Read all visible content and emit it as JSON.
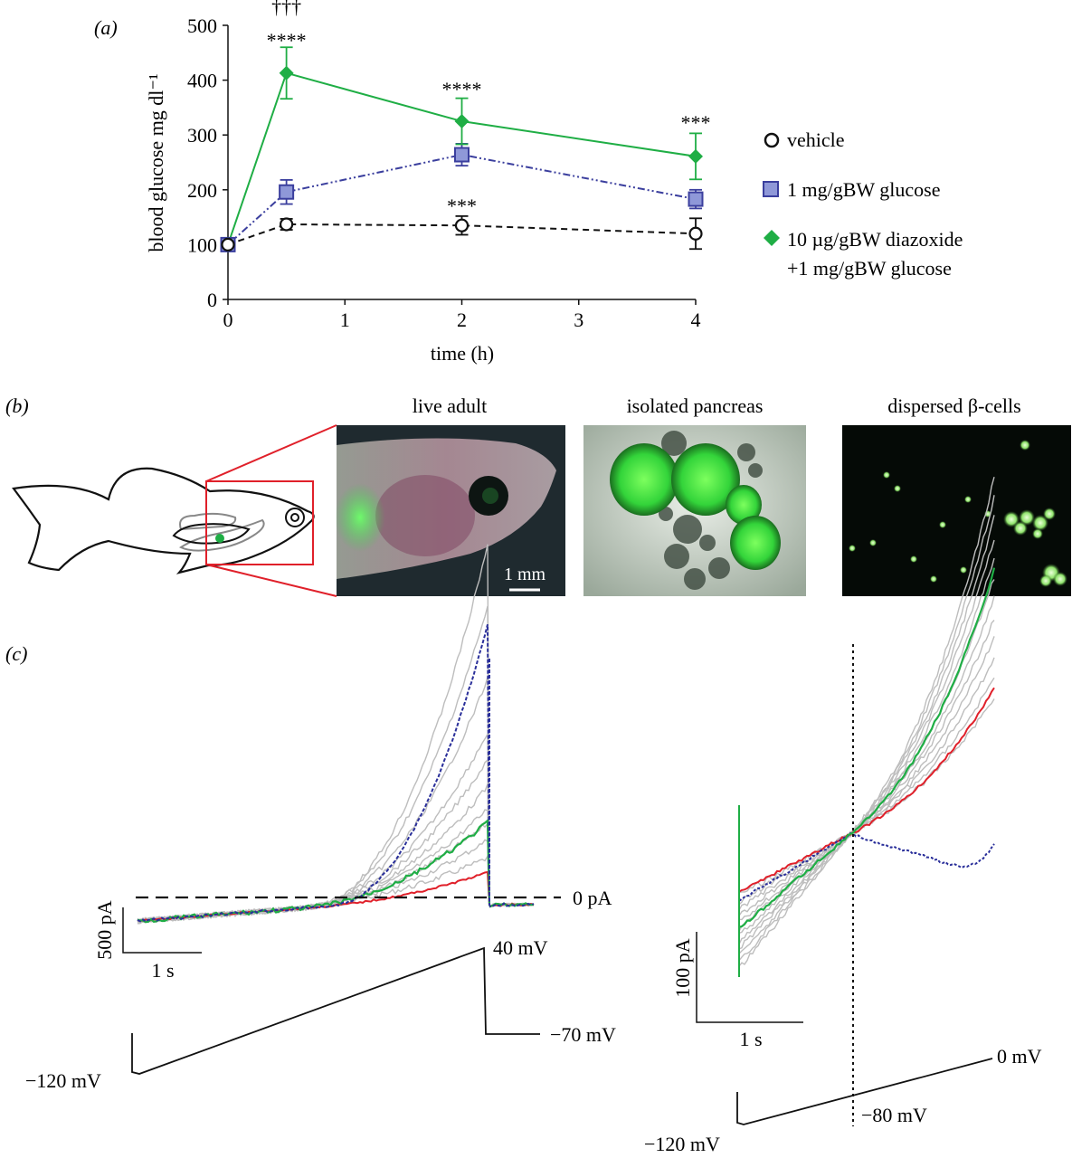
{
  "panel_labels": {
    "a": "(a)",
    "b": "(b)",
    "c": "(c)"
  },
  "chart_data": {
    "type": "line",
    "xlabel": "time (h)",
    "ylabel": "blood glucose mg dl⁻¹",
    "xlim": [
      0,
      4
    ],
    "ylim": [
      0,
      500
    ],
    "xticks": [
      "0",
      "1",
      "2",
      "3",
      "4"
    ],
    "yticks": [
      "0",
      "100",
      "200",
      "300",
      "400",
      "500"
    ],
    "x": [
      0,
      0.5,
      2,
      4
    ],
    "series": [
      {
        "name": "vehicle",
        "values": [
          100,
          137,
          135,
          120
        ],
        "err": [
          0,
          10,
          17,
          28
        ],
        "marker": "circle-open",
        "line": "dashed",
        "color": "#111111"
      },
      {
        "name": "1 mg/gBW glucose",
        "values": [
          100,
          196,
          264,
          183
        ],
        "err": [
          0,
          22,
          20,
          17
        ],
        "marker": "square",
        "line": "dash-dot-dot",
        "color": "#3b3f9e"
      },
      {
        "name": "10 µg/gBW diazoxide +1 mg/gBW glucose",
        "values": [
          100,
          413,
          325,
          261
        ],
        "err": [
          0,
          47,
          42,
          42
        ],
        "marker": "diamond",
        "line": "solid",
        "color": "#1fae45"
      }
    ],
    "annotations": [
      {
        "text": "†††",
        "x": 0.5
      },
      {
        "text": "****",
        "x": 0.5
      },
      {
        "text": "****",
        "x": 2
      },
      {
        "text": "***",
        "x": 4
      },
      {
        "text": "***",
        "x": 2
      }
    ],
    "legend": [
      "vehicle",
      "1 mg/gBW glucose",
      "10 µg/gBW diazoxide",
      "+1 mg/gBW glucose"
    ],
    "legend_position": "right"
  },
  "panel_b": {
    "titles": [
      "live adult",
      "isolated pancreas",
      "dispersed β-cells"
    ],
    "scale_bar": "1 mm"
  },
  "panel_c": {
    "left": {
      "zero_label": "0 pA",
      "scale_y": "500 pA",
      "scale_x": "1 s",
      "v_top": "40 mV",
      "v_hold": "−70 mV",
      "v_start": "−120 mV"
    },
    "right": {
      "scale_y": "100 pA",
      "scale_x": "1 s",
      "v_end": "0 mV",
      "v_mid": "−80 mV",
      "v_start": "−120 mV"
    }
  },
  "colors": {
    "green": "#1fae45",
    "blue": "#3b3f9e",
    "red": "#e0202a",
    "gray": "#bdbdbd",
    "black": "#111111"
  }
}
